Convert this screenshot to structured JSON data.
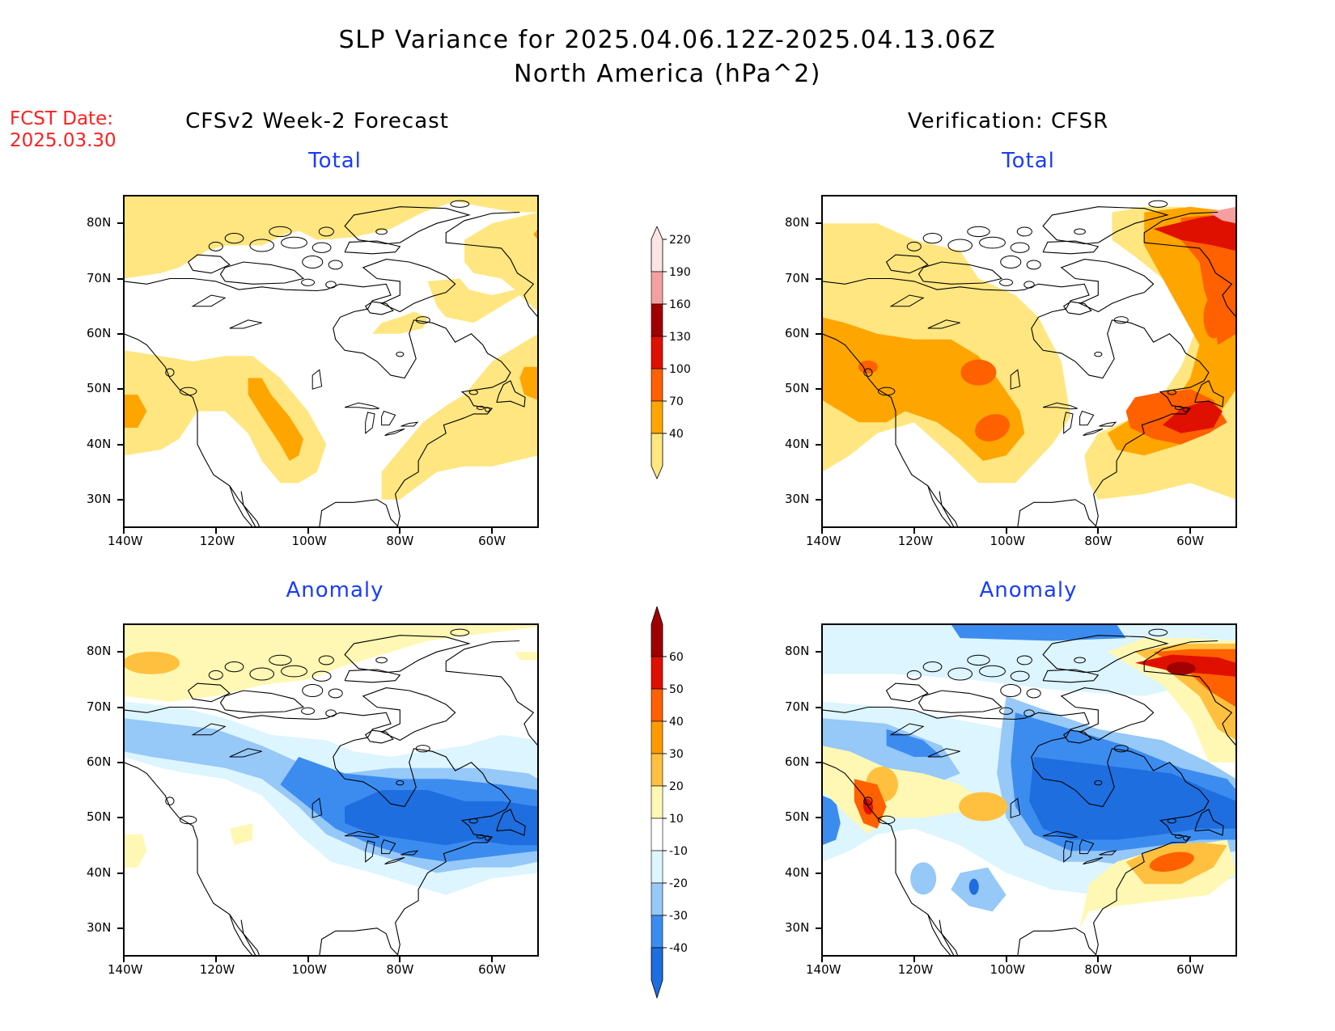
{
  "header": {
    "title_line1": "SLP Variance for 2025.04.06.12Z-2025.04.13.06Z",
    "title_line2": "North America (hPa^2)",
    "fcst_date_label": "FCST Date:",
    "fcst_date_value": "2025.03.30",
    "left_column": "CFSv2 Week-2 Forecast",
    "right_column": "Verification: CFSR"
  },
  "panels": {
    "fcst_total": {
      "title": "Total"
    },
    "verif_total": {
      "title": "Total"
    },
    "fcst_anomaly": {
      "title": "Anomaly"
    },
    "verif_anomaly": {
      "title": "Anomaly"
    }
  },
  "axes": {
    "lat_ticks": [
      "80N",
      "70N",
      "60N",
      "50N",
      "40N",
      "30N"
    ],
    "lon_ticks": [
      "140W",
      "120W",
      "100W",
      "80W",
      "60W"
    ],
    "lon_range": [
      -140,
      -50
    ],
    "lat_range": [
      25,
      85
    ]
  },
  "colorbars": {
    "total": {
      "labels": [
        "40",
        "70",
        "100",
        "130",
        "160",
        "190",
        "220"
      ],
      "colors": [
        "#ffe680",
        "#ffa500",
        "#ff6000",
        "#e01000",
        "#a00000",
        "#f4a0a0",
        "#fde4e4"
      ]
    },
    "anomaly": {
      "labels": [
        "-40",
        "-30",
        "-20",
        "-10",
        "10",
        "20",
        "30",
        "40",
        "50",
        "60"
      ],
      "colors": [
        "#1e6ee0",
        "#3c8cf0",
        "#96c8f8",
        "#dcf5ff",
        "#ffffff",
        "#fff8b4",
        "#ffc040",
        "#ff9a00",
        "#ff6000",
        "#e01000",
        "#a00000"
      ]
    }
  },
  "palette": {
    "yellow": "#ffe680",
    "lightyellow": "#fff8b4",
    "orange": "#ffa500",
    "darkorange": "#ff6000",
    "red": "#e01000",
    "darkred": "#a00000",
    "pink": "#f4a0a0",
    "paleblue": "#dcf5ff",
    "lightblue": "#96c8f8",
    "blue": "#3c8cf0",
    "darkblue": "#1e6ee0"
  }
}
